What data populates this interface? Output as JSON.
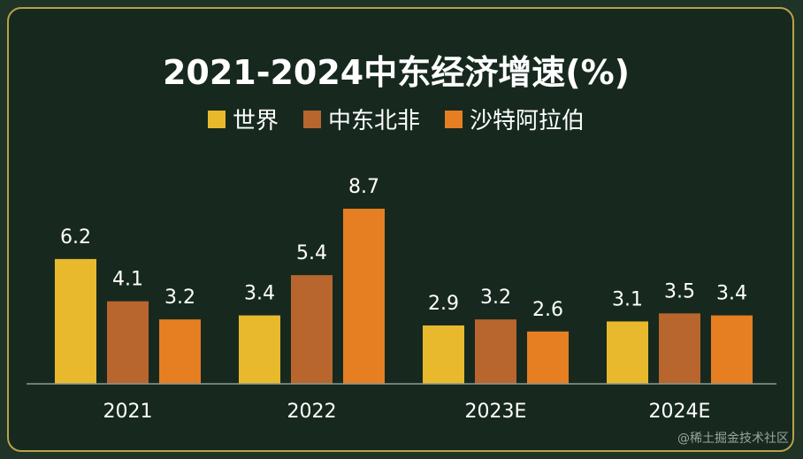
{
  "chart_data": {
    "type": "bar",
    "title": "2021-2024中东经济增速(%)",
    "categories": [
      "2021",
      "2022",
      "2023E",
      "2024E"
    ],
    "series": [
      {
        "name": "世界",
        "values": [
          6.2,
          3.4,
          2.9,
          3.1
        ],
        "color": "#e8b92c"
      },
      {
        "name": "中东北非",
        "values": [
          4.1,
          5.4,
          3.2,
          3.5
        ],
        "color": "#b8652e"
      },
      {
        "name": "沙特阿拉伯",
        "values": [
          3.2,
          8.7,
          2.6,
          3.4
        ],
        "color": "#e67e22"
      }
    ],
    "ylim": [
      0,
      8.7
    ],
    "grid": false,
    "legend": "top-center"
  },
  "colors": {
    "background": "#17291f",
    "border": "#b8a24a",
    "text": "#ffffff",
    "axis": "#8e9a93"
  },
  "watermark": "@稀土掘金技术社区"
}
